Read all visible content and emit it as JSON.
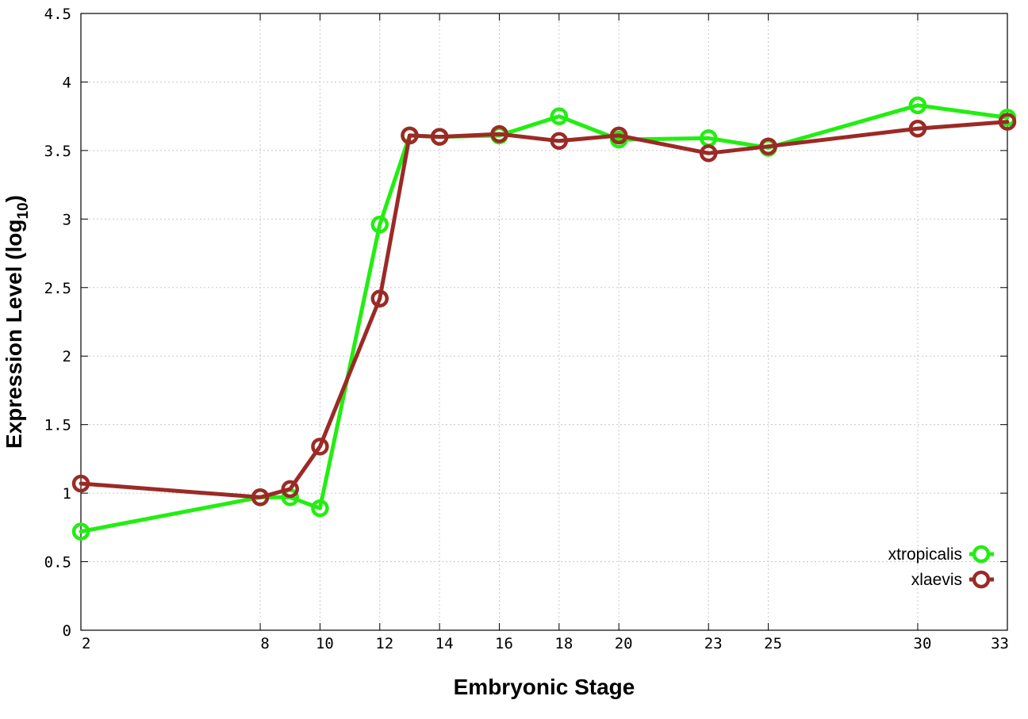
{
  "chart_data": {
    "type": "line",
    "title": "",
    "xlabel": "Embryonic Stage",
    "ylabel_main": "Expression Level (log",
    "ylabel_sub": "10",
    "ylabel_close": ")",
    "x_ticks": [
      2,
      8,
      10,
      12,
      14,
      16,
      18,
      20,
      23,
      25,
      30,
      33
    ],
    "y_ticks": [
      "0",
      "0.5",
      "1",
      "1.5",
      "2",
      "2.5",
      "3",
      "3.5",
      "4",
      "4.5"
    ],
    "xlim": [
      2,
      33
    ],
    "ylim": [
      0,
      4.5
    ],
    "grid": true,
    "legend_position": "bottom-right",
    "series": [
      {
        "name": "xtropicalis",
        "color": "#22ee11",
        "points": [
          [
            2,
            0.72
          ],
          [
            8,
            0.97
          ],
          [
            9,
            0.97
          ],
          [
            10,
            0.89
          ],
          [
            12,
            2.96
          ],
          [
            13,
            3.61
          ],
          [
            14,
            3.6
          ],
          [
            16,
            3.61
          ],
          [
            18,
            3.75
          ],
          [
            20,
            3.58
          ],
          [
            23,
            3.59
          ],
          [
            25,
            3.52
          ],
          [
            30,
            3.83
          ],
          [
            33,
            3.74
          ]
        ]
      },
      {
        "name": "xlaevis",
        "color": "#9b2a26",
        "points": [
          [
            2,
            1.07
          ],
          [
            8,
            0.97
          ],
          [
            9,
            1.03
          ],
          [
            10,
            1.34
          ],
          [
            12,
            2.42
          ],
          [
            13,
            3.61
          ],
          [
            14,
            3.6
          ],
          [
            16,
            3.62
          ],
          [
            18,
            3.57
          ],
          [
            20,
            3.61
          ],
          [
            23,
            3.48
          ],
          [
            25,
            3.53
          ],
          [
            30,
            3.66
          ],
          [
            33,
            3.71
          ]
        ]
      }
    ]
  }
}
